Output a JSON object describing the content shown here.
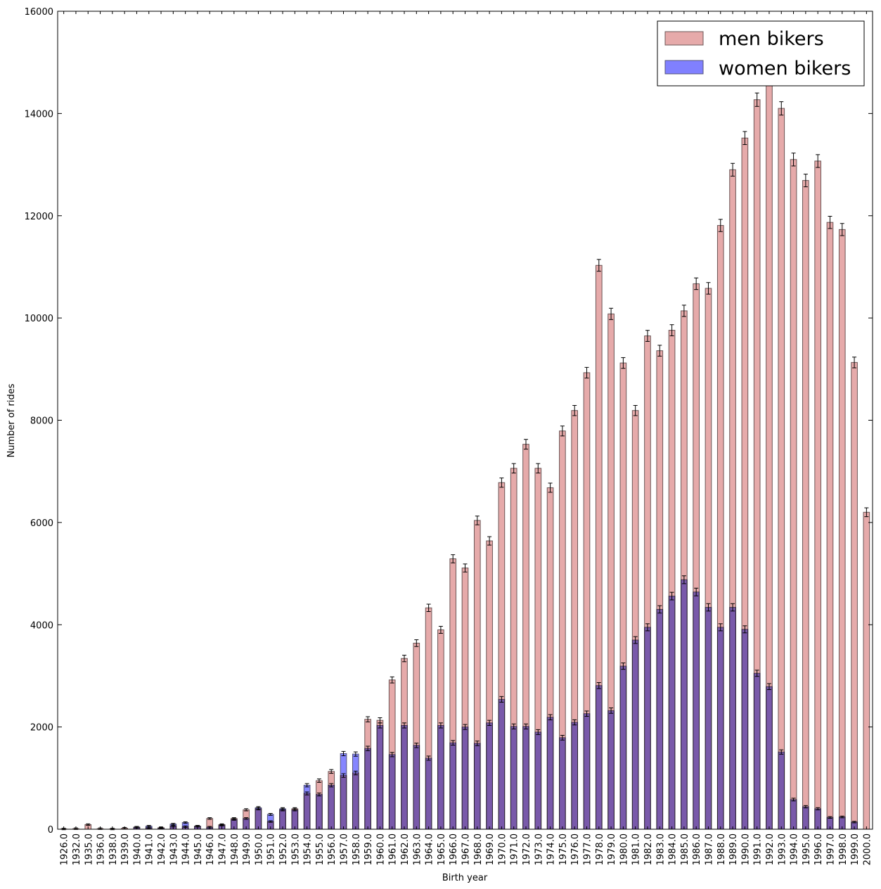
{
  "chart_data": {
    "type": "bar",
    "stacked": false,
    "overlaid": true,
    "title": "",
    "xlabel": "Birth year",
    "ylabel": "Number of rides",
    "ylim": [
      0,
      16000
    ],
    "yticks": [
      0,
      2000,
      4000,
      6000,
      8000,
      10000,
      12000,
      14000,
      16000
    ],
    "grid": false,
    "legend_position": "top-right",
    "error_bars": true,
    "categories": [
      "1926.0",
      "1932.0",
      "1935.0",
      "1936.0",
      "1938.0",
      "1939.0",
      "1940.0",
      "1941.0",
      "1942.0",
      "1943.0",
      "1944.0",
      "1945.0",
      "1946.0",
      "1947.0",
      "1948.0",
      "1949.0",
      "1950.0",
      "1951.0",
      "1952.0",
      "1953.0",
      "1954.0",
      "1955.0",
      "1956.0",
      "1957.0",
      "1958.0",
      "1959.0",
      "1960.0",
      "1961.0",
      "1962.0",
      "1963.0",
      "1964.0",
      "1965.0",
      "1966.0",
      "1967.0",
      "1968.0",
      "1969.0",
      "1970.0",
      "1971.0",
      "1972.0",
      "1973.0",
      "1974.0",
      "1975.0",
      "1976.0",
      "1977.0",
      "1978.0",
      "1979.0",
      "1980.0",
      "1981.0",
      "1982.0",
      "1983.0",
      "1984.0",
      "1985.0",
      "1986.0",
      "1987.0",
      "1988.0",
      "1989.0",
      "1990.0",
      "1991.0",
      "1992.0",
      "1993.0",
      "1994.0",
      "1995.0",
      "1996.0",
      "1997.0",
      "1998.0",
      "1999.0",
      "2000.0"
    ],
    "series": [
      {
        "name": "men bikers",
        "color": "#e6aaaa",
        "values": [
          5,
          10,
          90,
          10,
          5,
          20,
          40,
          30,
          30,
          60,
          50,
          60,
          210,
          90,
          210,
          380,
          400,
          150,
          380,
          400,
          700,
          950,
          1130,
          1050,
          1100,
          2150,
          2130,
          2920,
          3340,
          3640,
          4330,
          3900,
          5290,
          5110,
          6040,
          5640,
          6780,
          7060,
          7530,
          7060,
          6680,
          7790,
          8190,
          8930,
          11030,
          10080,
          9120,
          8190,
          9650,
          9360,
          9760,
          10140,
          10670,
          10580,
          11810,
          12900,
          13520,
          14270,
          14720,
          14100,
          13100,
          12690,
          13070,
          11870,
          11730,
          9130,
          6200
        ]
      },
      {
        "name": "women bikers",
        "color": "#8080ff",
        "values": [
          0,
          0,
          0,
          0,
          0,
          0,
          40,
          60,
          20,
          100,
          130,
          60,
          40,
          80,
          190,
          210,
          420,
          290,
          400,
          380,
          860,
          680,
          860,
          1480,
          1470,
          1580,
          2030,
          1460,
          2030,
          1640,
          1390,
          2030,
          1690,
          2000,
          1680,
          2080,
          2540,
          2010,
          2010,
          1900,
          2190,
          1790,
          2090,
          2260,
          2810,
          2320,
          3190,
          3700,
          3950,
          4300,
          4560,
          4880,
          4640,
          4340,
          3950,
          4340,
          3910,
          3050,
          2790,
          1510,
          580,
          440,
          400,
          230,
          240,
          140,
          0
        ]
      }
    ]
  }
}
